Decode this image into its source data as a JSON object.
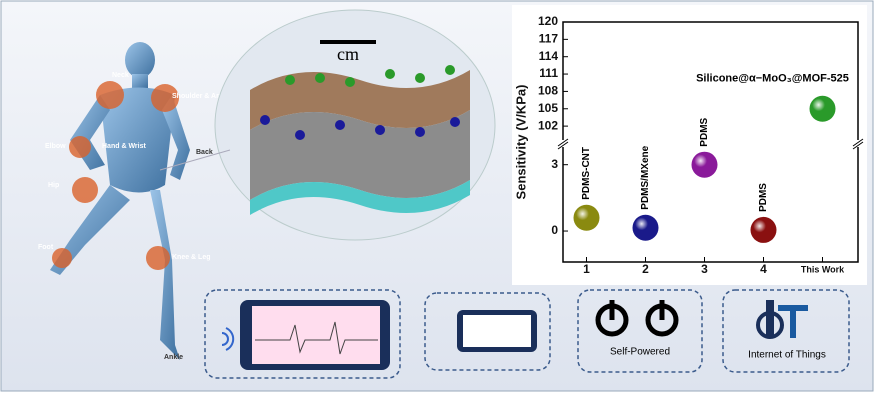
{
  "chart_data": {
    "type": "scatter",
    "y_label": "Sensitivity (V/KPa)",
    "categories": [
      "1",
      "2",
      "3",
      "4",
      "This Work"
    ],
    "values": [
      0.6,
      0.15,
      3.0,
      0.05,
      105
    ],
    "point_labels": [
      "PDMS-CNT",
      "PDMS/MXene",
      "PDMS",
      "PDMS",
      "Silicone@α−MoO₃@MOF-525"
    ],
    "colors": [
      "#8a8a10",
      "#1a1a8a",
      "#8a1a9a",
      "#8a1010",
      "#2a9a2a"
    ],
    "y_segments": [
      {
        "ylim": [
          -1.4,
          3.8
        ],
        "yticks": [
          0,
          3
        ]
      },
      {
        "ylim": [
          99.6,
          120
        ],
        "yticks": [
          102,
          105,
          108,
          111,
          114,
          117,
          120
        ]
      }
    ]
  },
  "body_labels": [
    "Neck",
    "Shoulder & Arm",
    "Elbow",
    "Hand & Wrist",
    "Back",
    "Hip",
    "Foot",
    "Knee & Leg",
    "Ankle"
  ],
  "scale_bar": "cm",
  "icons": [
    "Self-Powered",
    "Internet of Things"
  ]
}
